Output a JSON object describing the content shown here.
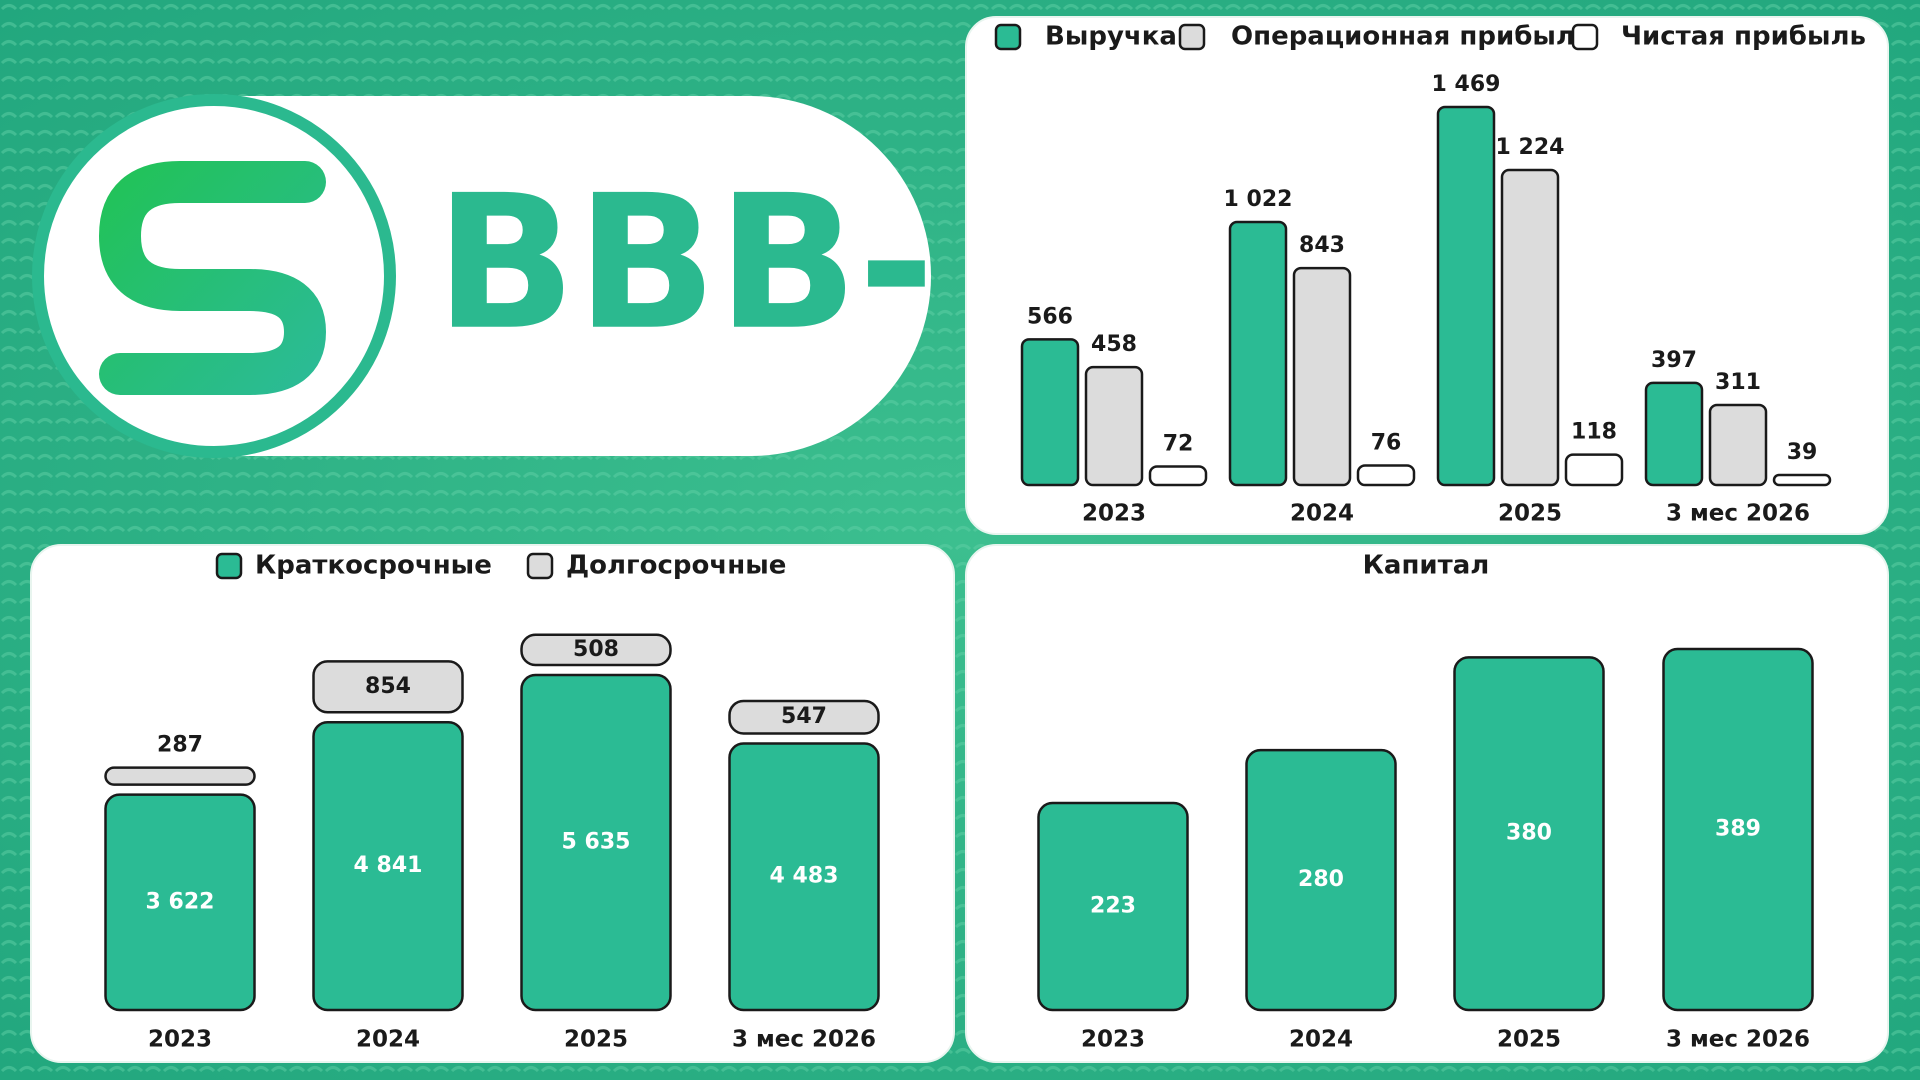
{
  "logo": {
    "text": "BBB-"
  },
  "chart_data": [
    {
      "type": "bar",
      "categories": [
        "2023",
        "2024",
        "2025",
        "3 мес 2026"
      ],
      "series": [
        {
          "name": "Выручка",
          "color": "#2bbb94",
          "values": [
            566,
            1022,
            1469,
            397
          ],
          "value_labels": [
            "566",
            "1 022",
            "1 469",
            "397"
          ]
        },
        {
          "name": "Операционная прибыль",
          "color": "#dcdcdc",
          "values": [
            458,
            843,
            1224,
            311
          ],
          "value_labels": [
            "458",
            "843",
            "1 224",
            "311"
          ]
        },
        {
          "name": "Чистая прибыль",
          "color": "#ffffff",
          "values": [
            72,
            76,
            118,
            39
          ]
        }
      ]
    },
    {
      "type": "stacked_bar",
      "categories": [
        "2023",
        "2024",
        "2025",
        "3 мес 2026"
      ],
      "series": [
        {
          "name": "Краткосрочные",
          "color": "#2bbb94",
          "values": [
            3622,
            4841,
            5635,
            4483
          ],
          "value_labels": [
            "3 622",
            "4 841",
            "5 635",
            "4 483"
          ]
        },
        {
          "name": "Долгосрочные",
          "color": "#dcdcdc",
          "values": [
            287,
            854,
            508,
            547
          ]
        }
      ]
    },
    {
      "type": "bar",
      "title": "Капитал",
      "categories": [
        "2023",
        "2024",
        "2025",
        "3 мес 2026"
      ],
      "color": "#2bbb94",
      "values": [
        223,
        280,
        380,
        389
      ]
    }
  ]
}
